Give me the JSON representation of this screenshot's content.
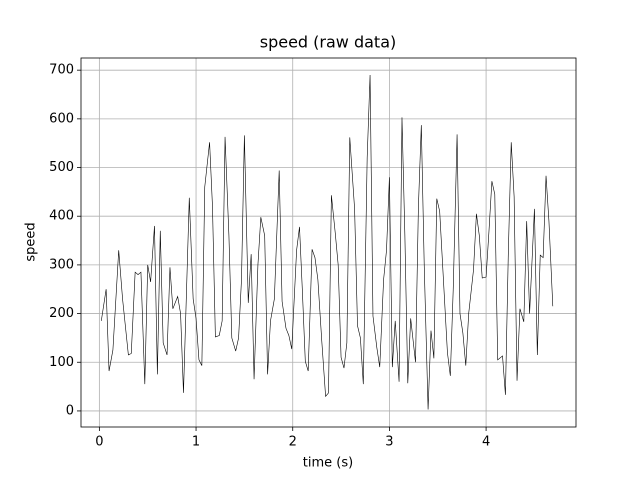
{
  "chart_data": {
    "type": "line",
    "title": "speed (raw data)",
    "x_label": "time (s)",
    "y_label": "speed",
    "x": [
      0.02,
      0.07,
      0.1,
      0.14,
      0.2,
      0.24,
      0.3,
      0.33,
      0.37,
      0.4,
      0.43,
      0.47,
      0.5,
      0.53,
      0.57,
      0.6,
      0.63,
      0.66,
      0.7,
      0.73,
      0.76,
      0.81,
      0.84,
      0.87,
      0.93,
      0.97,
      1.0,
      1.03,
      1.06,
      1.09,
      1.14,
      1.17,
      1.2,
      1.24,
      1.27,
      1.3,
      1.34,
      1.37,
      1.41,
      1.44,
      1.47,
      1.5,
      1.54,
      1.57,
      1.6,
      1.64,
      1.67,
      1.71,
      1.74,
      1.77,
      1.81,
      1.86,
      1.89,
      1.93,
      1.96,
      1.99,
      2.04,
      2.07,
      2.1,
      2.13,
      2.16,
      2.2,
      2.23,
      2.26,
      2.3,
      2.34,
      2.37,
      2.4,
      2.44,
      2.47,
      2.5,
      2.53,
      2.56,
      2.59,
      2.64,
      2.67,
      2.7,
      2.73,
      2.77,
      2.8,
      2.83,
      2.87,
      2.9,
      2.94,
      2.97,
      3.0,
      3.03,
      3.06,
      3.1,
      3.13,
      3.16,
      3.19,
      3.22,
      3.27,
      3.3,
      3.33,
      3.36,
      3.4,
      3.43,
      3.46,
      3.49,
      3.52,
      3.56,
      3.6,
      3.63,
      3.66,
      3.7,
      3.73,
      3.76,
      3.79,
      3.82,
      3.87,
      3.9,
      3.93,
      3.96,
      4.0,
      4.03,
      4.06,
      4.09,
      4.12,
      4.17,
      4.2,
      4.23,
      4.26,
      4.29,
      4.32,
      4.35,
      4.39,
      4.42,
      4.45,
      4.5,
      4.53,
      4.56,
      4.59,
      4.62,
      4.65,
      4.69
    ],
    "values": [
      185,
      250,
      82,
      125,
      330,
      230,
      115,
      118,
      285,
      280,
      285,
      55,
      300,
      265,
      380,
      75,
      370,
      140,
      115,
      295,
      210,
      235,
      200,
      37,
      438,
      230,
      190,
      105,
      93,
      460,
      552,
      420,
      152,
      155,
      185,
      563,
      360,
      150,
      123,
      150,
      270,
      566,
      222,
      322,
      65,
      300,
      398,
      360,
      75,
      185,
      230,
      494,
      225,
      170,
      155,
      127,
      330,
      378,
      245,
      102,
      82,
      332,
      315,
      270,
      145,
      30,
      37,
      443,
      365,
      300,
      110,
      88,
      140,
      562,
      415,
      175,
      150,
      55,
      520,
      690,
      195,
      130,
      90,
      270,
      330,
      480,
      90,
      185,
      60,
      603,
      360,
      57,
      190,
      100,
      420,
      587,
      300,
      3,
      165,
      108,
      436,
      410,
      265,
      120,
      72,
      250,
      568,
      200,
      160,
      93,
      200,
      290,
      405,
      360,
      273,
      275,
      370,
      472,
      445,
      105,
      113,
      33,
      325,
      552,
      440,
      62,
      210,
      183,
      390,
      200,
      415,
      115,
      320,
      315,
      483,
      390,
      215
    ],
    "color": "#000000",
    "xlim": [
      -0.19,
      4.93
    ],
    "ylim": [
      -33,
      725
    ],
    "xticks": [
      0,
      1,
      2,
      3,
      4
    ],
    "yticks": [
      0,
      100,
      200,
      300,
      400,
      500,
      600,
      700
    ],
    "grid": true
  }
}
